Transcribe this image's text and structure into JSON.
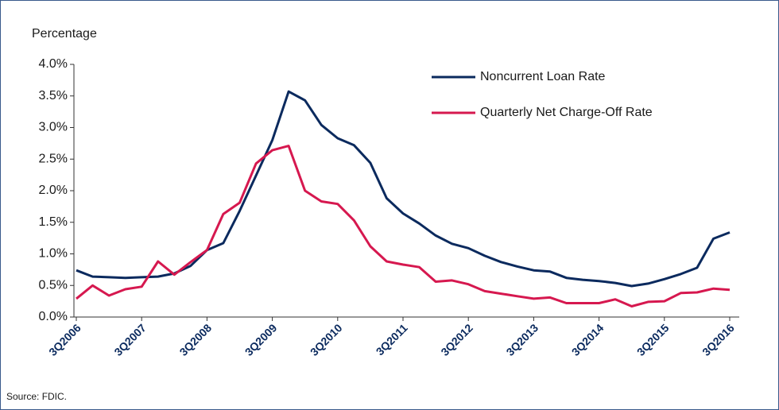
{
  "chart_data": {
    "type": "line",
    "y_label": "Percentage",
    "source": "Source: FDIC.",
    "categories": [
      "3Q2006",
      null,
      null,
      null,
      "3Q2007",
      null,
      null,
      null,
      "3Q2008",
      null,
      null,
      null,
      "3Q2009",
      null,
      null,
      null,
      "3Q2010",
      null,
      null,
      null,
      "3Q2011",
      null,
      null,
      null,
      "3Q2012",
      null,
      null,
      null,
      "3Q2013",
      null,
      null,
      null,
      "3Q2014",
      null,
      null,
      null,
      "3Q2015",
      null,
      null,
      null,
      "3Q2016"
    ],
    "series": [
      {
        "name": "Noncurrent Loan Rate",
        "color": "#0b2a5e",
        "values": [
          0.74,
          0.64,
          0.63,
          0.62,
          0.63,
          0.64,
          0.69,
          0.81,
          1.06,
          1.17,
          1.68,
          2.24,
          2.8,
          3.57,
          3.43,
          3.04,
          2.83,
          2.72,
          2.44,
          1.88,
          1.64,
          1.48,
          1.29,
          1.16,
          1.09,
          0.97,
          0.87,
          0.8,
          0.74,
          0.72,
          0.62,
          0.59,
          0.57,
          0.54,
          0.49,
          0.53,
          0.6,
          0.68,
          0.78,
          1.24,
          1.34
        ]
      },
      {
        "name": "Quarterly Net Charge-Off Rate",
        "color": "#d6184f",
        "values": [
          0.29,
          0.5,
          0.34,
          0.44,
          0.48,
          0.88,
          0.67,
          0.87,
          1.06,
          1.63,
          1.81,
          2.43,
          2.64,
          2.71,
          2.0,
          1.83,
          1.79,
          1.53,
          1.12,
          0.88,
          0.83,
          0.79,
          0.56,
          0.58,
          0.52,
          0.41,
          0.37,
          0.33,
          0.29,
          0.31,
          0.22,
          0.22,
          0.22,
          0.28,
          0.17,
          0.24,
          0.25,
          0.38,
          0.39,
          0.45,
          0.43
        ]
      }
    ],
    "ylim": [
      0,
      4
    ],
    "yticks": [
      {
        "value": 0,
        "label": "0.0%"
      },
      {
        "value": 0.5,
        "label": "0.5%"
      },
      {
        "value": 1,
        "label": "1.0%"
      },
      {
        "value": 1.5,
        "label": "1.5%"
      },
      {
        "value": 2,
        "label": "2.0%"
      },
      {
        "value": 2.5,
        "label": "2.5%"
      },
      {
        "value": 3,
        "label": "3.0%"
      },
      {
        "value": 3.5,
        "label": "3.5%"
      },
      {
        "value": 4,
        "label": "4.0%"
      }
    ],
    "grid": false,
    "legend": "top-right"
  }
}
